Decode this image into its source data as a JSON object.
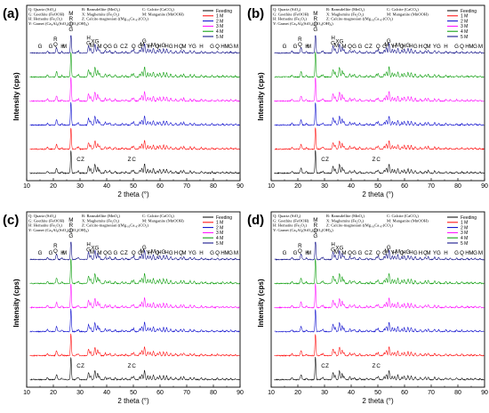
{
  "figure": {
    "panel_labels": [
      "(a)",
      "(b)",
      "(c)",
      "(d)"
    ]
  },
  "mineral_legend": [
    [
      "Q: Quartz (SiO₂)",
      "R: Ramsdellite (MnO₂)",
      "C: Calcite (CaCO₃)"
    ],
    [
      "G: Goethite (FeOOH)",
      "X: Maghemite (Fe₂O₃)",
      "M: Manganite (MnOOH)"
    ],
    [
      "H: Hematite (Fe₂O₃)",
      "Z: Calcite-magnesian ((Mg.₀₃Ca.₉₇)CO₃)",
      ""
    ],
    [
      "Y: Garnet (Ca₃Al₂(SiO₄)₂CO₃(OH)₄)",
      "",
      ""
    ]
  ],
  "peak_labels_top": [
    {
      "x": 15,
      "text": "G"
    },
    {
      "x": 19,
      "text": "G"
    },
    {
      "x": 20.8,
      "text": "Q"
    },
    {
      "x": 20.8,
      "text": "R"
    },
    {
      "x": 23.5,
      "text": "H"
    },
    {
      "x": 24.2,
      "text": "M"
    },
    {
      "x": 26.6,
      "text": "G"
    },
    {
      "x": 26.6,
      "text": "Q"
    },
    {
      "x": 26.6,
      "text": "R"
    },
    {
      "x": 26.6,
      "text": "M"
    },
    {
      "x": 33.2,
      "text": "G"
    },
    {
      "x": 33.2,
      "text": "H"
    },
    {
      "x": 34.5,
      "text": "M"
    },
    {
      "x": 35.6,
      "text": "XG"
    },
    {
      "x": 37.3,
      "text": "M"
    },
    {
      "x": 39.5,
      "text": "Q"
    },
    {
      "x": 41.2,
      "text": "G"
    },
    {
      "x": 43.3,
      "text": "G"
    },
    {
      "x": 45.8,
      "text": "C"
    },
    {
      "x": 47.3,
      "text": "Z"
    },
    {
      "x": 50.1,
      "text": "Q"
    },
    {
      "x": 52.5,
      "text": "G"
    },
    {
      "x": 53.3,
      "text": "M"
    },
    {
      "x": 54.1,
      "text": "G"
    },
    {
      "x": 55.5,
      "text": "Y"
    },
    {
      "x": 56.2,
      "text": "H"
    },
    {
      "x": 57.5,
      "text": "M"
    },
    {
      "x": 59.0,
      "text": "Q"
    },
    {
      "x": 59.8,
      "text": "H"
    },
    {
      "x": 61.3,
      "text": "G"
    },
    {
      "x": 62.5,
      "text": "H"
    },
    {
      "x": 64.1,
      "text": "G"
    },
    {
      "x": 66.0,
      "text": "H"
    },
    {
      "x": 67.8,
      "text": "Q"
    },
    {
      "x": 69.0,
      "text": "M"
    },
    {
      "x": 71.3,
      "text": "Y"
    },
    {
      "x": 72.8,
      "text": "G"
    },
    {
      "x": 75.5,
      "text": "H"
    },
    {
      "x": 79.5,
      "text": "G"
    },
    {
      "x": 81.5,
      "text": "Q"
    },
    {
      "x": 83.5,
      "text": "H"
    },
    {
      "x": 85.0,
      "text": "M"
    },
    {
      "x": 86.5,
      "text": "G"
    },
    {
      "x": 88.5,
      "text": "M"
    }
  ],
  "peak_labels_bottom": [
    {
      "x": 29.5,
      "text": "C"
    },
    {
      "x": 31.0,
      "text": "Z"
    },
    {
      "x": 48.5,
      "text": "Z"
    },
    {
      "x": 50.2,
      "text": "C"
    }
  ],
  "chart_data": [
    {
      "type": "line",
      "panel": "(a)",
      "xlabel": "2 theta (°)",
      "ylabel": "Intensity (cps)",
      "xlim": [
        10,
        90
      ],
      "xticks": [
        10,
        20,
        30,
        40,
        50,
        60,
        70,
        80,
        90
      ],
      "legend_position": "top-right",
      "series": [
        {
          "name": "Feeding",
          "color": "#000000"
        },
        {
          "name": "1 M",
          "color": "#ff0000"
        },
        {
          "name": "2 M",
          "color": "#0000cc"
        },
        {
          "name": "3 M",
          "color": "#ff00ff"
        },
        {
          "name": "4 M",
          "color": "#009900"
        },
        {
          "name": "5 M",
          "color": "#000080"
        }
      ]
    },
    {
      "type": "line",
      "panel": "(b)",
      "xlabel": "2 theta (°)",
      "ylabel": "Intensity (cps)",
      "xlim": [
        10,
        90
      ],
      "xticks": [
        10,
        20,
        30,
        40,
        50,
        60,
        70,
        80,
        90
      ],
      "legend_position": "top-right",
      "series": [
        {
          "name": "Feeding",
          "color": "#000000"
        },
        {
          "name": "1 M",
          "color": "#ff0000"
        },
        {
          "name": "2 M",
          "color": "#0000cc"
        },
        {
          "name": "3 M",
          "color": "#ff00ff"
        },
        {
          "name": "4 M",
          "color": "#009900"
        },
        {
          "name": "5 M",
          "color": "#000080"
        }
      ]
    },
    {
      "type": "line",
      "panel": "(c)",
      "xlabel": "2 theta (°)",
      "ylabel": "Intensity (cps)",
      "xlim": [
        10,
        90
      ],
      "xticks": [
        10,
        20,
        30,
        40,
        50,
        60,
        70,
        80,
        90
      ],
      "legend_position": "top-right",
      "series": [
        {
          "name": "Feeding",
          "color": "#000000"
        },
        {
          "name": "1 M",
          "color": "#ff0000"
        },
        {
          "name": "2 M",
          "color": "#0000cc"
        },
        {
          "name": "3 M",
          "color": "#ff00ff"
        },
        {
          "name": "4 M",
          "color": "#009900"
        },
        {
          "name": "5 M",
          "color": "#000080"
        }
      ]
    },
    {
      "type": "line",
      "panel": "(d)",
      "xlabel": "2 theta (°)",
      "ylabel": "Intensity (cps)",
      "xlim": [
        10,
        90
      ],
      "xticks": [
        10,
        20,
        30,
        40,
        50,
        60,
        70,
        80,
        90
      ],
      "legend_position": "top-right",
      "series": [
        {
          "name": "Feeding",
          "color": "#000000"
        },
        {
          "name": "1 M",
          "color": "#ff0000"
        },
        {
          "name": "2 M",
          "color": "#0000cc"
        },
        {
          "name": "3 M",
          "color": "#ff00ff"
        },
        {
          "name": "4 M",
          "color": "#009900"
        },
        {
          "name": "5 M",
          "color": "#000080"
        }
      ]
    }
  ]
}
